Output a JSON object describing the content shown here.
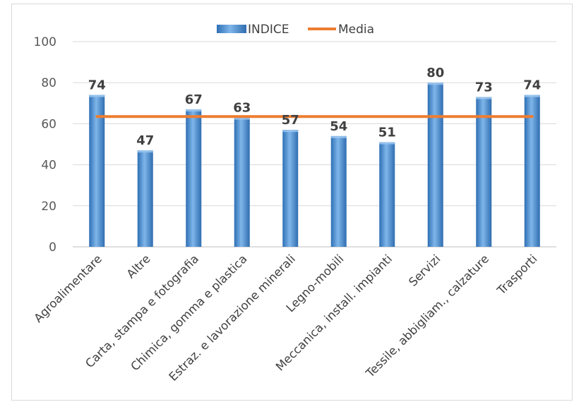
{
  "chart_data": {
    "type": "bar",
    "title": "",
    "xlabel": "",
    "ylabel": "",
    "ylim": [
      0,
      100
    ],
    "yticks": [
      0,
      20,
      40,
      60,
      80,
      100
    ],
    "grid": true,
    "legend_position": "top",
    "categories": [
      "Agroalimentare",
      "Altre",
      "Carta, stampa e fotografia",
      "Chimica, gomma e plastica",
      "Estraz. e lavorazione minerali",
      "Legno-mobili",
      "Meccanica, install. impianti",
      "Servizi",
      "Tessile, abbigliam., calzature",
      "Trasporti"
    ],
    "series": [
      {
        "name": "INDICE",
        "type": "bar",
        "color": "#5b9bd5",
        "values": [
          74,
          47,
          67,
          63,
          57,
          54,
          51,
          80,
          73,
          74
        ]
      },
      {
        "name": "Media",
        "type": "line",
        "color": "#ed7d31",
        "values": [
          63.5,
          63.5,
          63.5,
          63.5,
          63.5,
          63.5,
          63.5,
          63.5,
          63.5,
          63.5
        ]
      }
    ]
  }
}
